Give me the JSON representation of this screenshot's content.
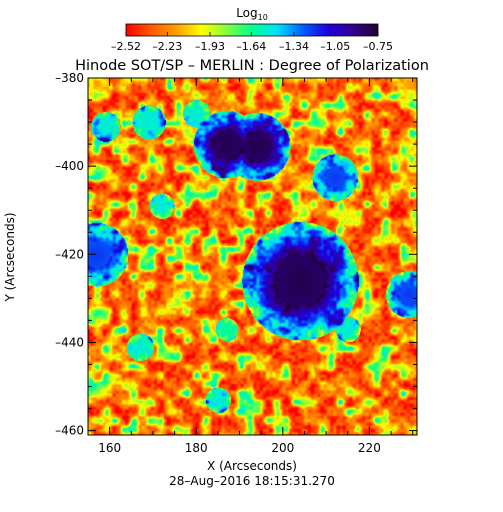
{
  "chart_data": {
    "type": "heatmap",
    "title": "Hinode SOT/SP – MERLIN : Degree of Polarization",
    "xlabel": "X (Arcseconds)",
    "ylabel": "Y (Arcseconds)",
    "timestamp": "28–Aug–2016 18:15:31.270",
    "xlim": [
      155,
      231
    ],
    "ylim": [
      -461,
      -380
    ],
    "x_ticks": [
      160,
      180,
      200,
      220
    ],
    "y_ticks": [
      -380,
      -400,
      -420,
      -440,
      -460
    ],
    "x_tick_labels": [
      "160",
      "180",
      "200",
      "220"
    ],
    "y_tick_labels": [
      "–380",
      "–400",
      "–420",
      "–440",
      "–460"
    ],
    "colorbar": {
      "label_base": "Log",
      "label_sub": "10",
      "range": [
        -2.52,
        -0.75
      ],
      "ticks": [
        -2.52,
        -2.23,
        -1.93,
        -1.64,
        -1.34,
        -1.05,
        -0.75
      ],
      "tick_labels": [
        "–2.52",
        "–2.23",
        "–1.93",
        "–1.64",
        "–1.34",
        "–1.05",
        "–0.75"
      ],
      "colormap": [
        "#ff0000",
        "#ff5a00",
        "#ffa000",
        "#ffff00",
        "#80ff40",
        "#00ff90",
        "#00e0ff",
        "#0060ff",
        "#2000e0",
        "#300090",
        "#200030"
      ]
    },
    "features": [
      {
        "label": "large pore",
        "x": 204,
        "y": -426,
        "radius": 5.6,
        "value": -0.8
      },
      {
        "label": "pore pair left",
        "x": 187,
        "y": -395,
        "radius": 3.2,
        "value": -0.8
      },
      {
        "label": "pore pair right",
        "x": 194,
        "y": -395.5,
        "radius": 3.2,
        "value": -0.8
      },
      {
        "label": "patch",
        "x": 212,
        "y": -402.5,
        "radius": 2.2,
        "value": -1.2
      },
      {
        "label": "patch",
        "x": 157,
        "y": -420,
        "radius": 3.0,
        "value": -1.2
      },
      {
        "label": "patch",
        "x": 229,
        "y": -429,
        "radius": 2.2,
        "value": -1.2
      },
      {
        "label": "patch",
        "x": 169,
        "y": -390,
        "radius": 1.6,
        "value": -1.5
      },
      {
        "label": "patch",
        "x": 159,
        "y": -391,
        "radius": 1.4,
        "value": -1.5
      },
      {
        "label": "patch",
        "x": 180,
        "y": -388,
        "radius": 1.3,
        "value": -1.5
      },
      {
        "label": "patch",
        "x": 172,
        "y": -409,
        "radius": 1.2,
        "value": -1.5
      },
      {
        "label": "patch",
        "x": 167,
        "y": -441,
        "radius": 1.3,
        "value": -1.5
      },
      {
        "label": "patch",
        "x": 185,
        "y": -453,
        "radius": 1.2,
        "value": -1.5
      },
      {
        "label": "patch",
        "x": 215,
        "y": -437,
        "radius": 1.2,
        "value": -1.5
      },
      {
        "label": "patch",
        "x": 187,
        "y": -437,
        "radius": 1.1,
        "value": -1.6
      }
    ]
  }
}
